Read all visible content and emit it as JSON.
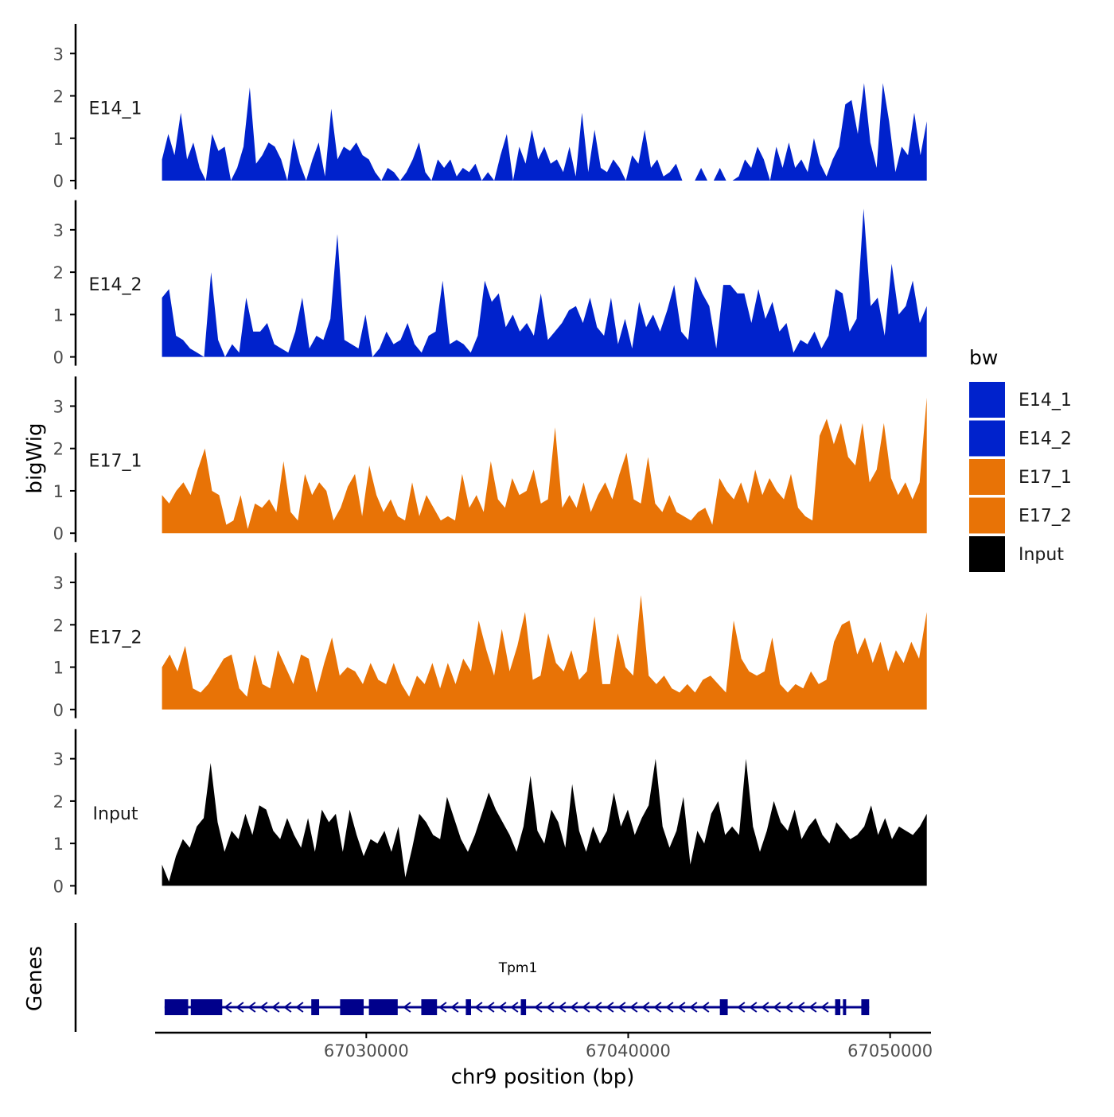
{
  "chart_data": {
    "type": "area",
    "ylabel": "bigWig",
    "xlabel": "chr9 position (bp)",
    "genes_label": "Genes",
    "xlim": [
      67022000,
      67051500
    ],
    "x_ticks": [
      67030000,
      67040000,
      67050000
    ],
    "x_tick_labels": [
      "67030000",
      "67040000",
      "67050000"
    ],
    "ylim": [
      0,
      3.7
    ],
    "y_ticks": [
      0,
      1,
      2,
      3
    ],
    "y_tick_labels": [
      "0",
      "1",
      "2",
      "3"
    ],
    "legend": {
      "title": "bw",
      "position": "right",
      "entries": [
        {
          "label": "E14_1",
          "color": "#0022cc"
        },
        {
          "label": "E14_2",
          "color": "#0022cc"
        },
        {
          "label": "E17_1",
          "color": "#e87306"
        },
        {
          "label": "E17_2",
          "color": "#e87306"
        },
        {
          "label": "Input",
          "color": "#000000"
        }
      ]
    },
    "tracks": [
      {
        "name": "E14_1",
        "color": "#0022cc",
        "x_start": 67022200,
        "x_end": 67051400,
        "values": [
          0.5,
          1.1,
          0.6,
          1.6,
          0.5,
          0.9,
          0.3,
          0,
          1.1,
          0.7,
          0.8,
          0,
          0.3,
          0.8,
          2.2,
          0.4,
          0.6,
          0.9,
          0.8,
          0.5,
          0,
          1.0,
          0.4,
          0,
          0.5,
          0.9,
          0.1,
          1.7,
          0.5,
          0.8,
          0.7,
          0.9,
          0.6,
          0.5,
          0.2,
          0,
          0.3,
          0.2,
          0,
          0.2,
          0.5,
          0.9,
          0.2,
          0,
          0.5,
          0.3,
          0.5,
          0.1,
          0.3,
          0.2,
          0.4,
          0,
          0.2,
          0,
          0.6,
          1.1,
          0,
          0.8,
          0.4,
          1.2,
          0.5,
          0.8,
          0.4,
          0.5,
          0.2,
          0.8,
          0.1,
          1.6,
          0.2,
          1.2,
          0.3,
          0.2,
          0.5,
          0.3,
          0,
          0.6,
          0.4,
          1.2,
          0.3,
          0.5,
          0.1,
          0.2,
          0.4,
          0,
          0,
          0,
          0.3,
          0,
          0,
          0.3,
          0,
          0,
          0.1,
          0.5,
          0.3,
          0.8,
          0.5,
          0,
          0.8,
          0.3,
          0.9,
          0.3,
          0.5,
          0.2,
          1.0,
          0.4,
          0.1,
          0.5,
          0.8,
          1.8,
          1.9,
          1.1,
          2.3,
          0.9,
          0.3,
          2.3,
          1.4,
          0.2,
          0.8,
          0.6,
          1.6,
          0.6,
          1.4
        ]
      },
      {
        "name": "E14_2",
        "color": "#0022cc",
        "x_start": 67022200,
        "x_end": 67051400,
        "values": [
          1.4,
          1.6,
          0.5,
          0.4,
          0.2,
          0.1,
          0,
          2.0,
          0.4,
          0,
          0.3,
          0.1,
          1.4,
          0.6,
          0.6,
          0.8,
          0.3,
          0.2,
          0.1,
          0.6,
          1.4,
          0.2,
          0.5,
          0.4,
          0.9,
          2.9,
          0.4,
          0.3,
          0.2,
          1.0,
          0,
          0.2,
          0.6,
          0.3,
          0.4,
          0.8,
          0.3,
          0.1,
          0.5,
          0.6,
          1.8,
          0.3,
          0.4,
          0.3,
          0.1,
          0.5,
          1.8,
          1.3,
          1.5,
          0.7,
          1.0,
          0.6,
          0.8,
          0.5,
          1.5,
          0.4,
          0.6,
          0.8,
          1.1,
          1.2,
          0.8,
          1.4,
          0.7,
          0.5,
          1.4,
          0.3,
          0.9,
          0.2,
          1.3,
          0.7,
          1.0,
          0.6,
          1.1,
          1.7,
          0.6,
          0.4,
          1.9,
          1.5,
          1.2,
          0.2,
          1.7,
          1.7,
          1.5,
          1.5,
          0.8,
          1.6,
          0.9,
          1.3,
          0.6,
          0.8,
          0.1,
          0.4,
          0.3,
          0.6,
          0.2,
          0.5,
          1.6,
          1.5,
          0.6,
          0.9,
          3.5,
          1.2,
          1.4,
          0.5,
          2.2,
          1.0,
          1.2,
          1.8,
          0.8,
          1.2
        ]
      },
      {
        "name": "E17_1",
        "color": "#e87306",
        "x_start": 67022200,
        "x_end": 67051400,
        "values": [
          0.9,
          0.7,
          1.0,
          1.2,
          0.9,
          1.5,
          2.0,
          1.0,
          0.9,
          0.2,
          0.3,
          0.9,
          0.1,
          0.7,
          0.6,
          0.8,
          0.5,
          1.7,
          0.5,
          0.3,
          1.4,
          0.9,
          1.2,
          1.0,
          0.3,
          0.6,
          1.1,
          1.4,
          0.4,
          1.6,
          0.9,
          0.5,
          0.8,
          0.4,
          0.3,
          1.2,
          0.4,
          0.9,
          0.6,
          0.3,
          0.4,
          0.3,
          1.4,
          0.6,
          0.9,
          0.5,
          1.7,
          0.8,
          0.6,
          1.3,
          0.9,
          1.0,
          1.5,
          0.7,
          0.8,
          2.5,
          0.6,
          0.9,
          0.6,
          1.2,
          0.5,
          0.9,
          1.2,
          0.8,
          1.4,
          1.9,
          0.8,
          0.7,
          1.8,
          0.7,
          0.5,
          0.9,
          0.5,
          0.4,
          0.3,
          0.5,
          0.6,
          0.2,
          1.3,
          1.0,
          0.8,
          1.2,
          0.7,
          1.5,
          0.9,
          1.3,
          1.0,
          0.8,
          1.4,
          0.6,
          0.4,
          0.3,
          2.3,
          2.7,
          2.1,
          2.6,
          1.8,
          1.6,
          2.6,
          1.2,
          1.5,
          2.6,
          1.3,
          0.9,
          1.2,
          0.8,
          1.2,
          3.2
        ]
      },
      {
        "name": "E17_2",
        "color": "#e87306",
        "x_start": 67022200,
        "x_end": 67051400,
        "values": [
          1.0,
          1.3,
          0.9,
          1.5,
          0.5,
          0.4,
          0.6,
          0.9,
          1.2,
          1.3,
          0.5,
          0.3,
          1.3,
          0.6,
          0.5,
          1.4,
          1.0,
          0.6,
          1.3,
          1.2,
          0.4,
          1.1,
          1.7,
          0.8,
          1.0,
          0.9,
          0.6,
          1.1,
          0.7,
          0.6,
          1.1,
          0.6,
          0.3,
          0.8,
          0.6,
          1.1,
          0.5,
          1.1,
          0.6,
          1.2,
          0.9,
          2.1,
          1.4,
          0.8,
          1.9,
          0.9,
          1.5,
          2.3,
          0.7,
          0.8,
          1.8,
          1.1,
          0.9,
          1.4,
          0.7,
          0.9,
          2.2,
          0.6,
          0.6,
          1.8,
          1.0,
          0.8,
          2.7,
          0.8,
          0.6,
          0.8,
          0.5,
          0.4,
          0.6,
          0.4,
          0.7,
          0.8,
          0.6,
          0.4,
          2.1,
          1.2,
          0.9,
          0.8,
          0.9,
          1.7,
          0.6,
          0.4,
          0.6,
          0.5,
          0.9,
          0.6,
          0.7,
          1.6,
          2.0,
          2.1,
          1.3,
          1.7,
          1.1,
          1.6,
          0.9,
          1.4,
          1.1,
          1.6,
          1.2,
          2.3
        ]
      },
      {
        "name": "Input",
        "color": "#000000",
        "x_start": 67022200,
        "x_end": 67051400,
        "values": [
          0.5,
          0.1,
          0.7,
          1.1,
          0.9,
          1.4,
          1.6,
          2.9,
          1.5,
          0.8,
          1.3,
          1.1,
          1.7,
          1.2,
          1.9,
          1.8,
          1.3,
          1.1,
          1.6,
          1.2,
          0.9,
          1.6,
          0.8,
          1.8,
          1.5,
          1.7,
          0.8,
          1.8,
          1.2,
          0.7,
          1.1,
          1.0,
          1.3,
          0.8,
          1.4,
          0.2,
          0.9,
          1.7,
          1.5,
          1.2,
          1.1,
          2.1,
          1.6,
          1.1,
          0.8,
          1.2,
          1.7,
          2.2,
          1.8,
          1.5,
          1.2,
          0.8,
          1.4,
          2.6,
          1.3,
          1.0,
          1.8,
          1.5,
          0.9,
          2.4,
          1.3,
          0.8,
          1.4,
          1.0,
          1.3,
          2.2,
          1.4,
          1.8,
          1.2,
          1.6,
          1.9,
          3.0,
          1.4,
          0.9,
          1.3,
          2.1,
          0.5,
          1.3,
          1.0,
          1.7,
          2.0,
          1.2,
          1.4,
          1.2,
          3.0,
          1.4,
          0.8,
          1.3,
          2.0,
          1.5,
          1.3,
          1.8,
          1.1,
          1.4,
          1.6,
          1.2,
          1.0,
          1.5,
          1.3,
          1.1,
          1.2,
          1.4,
          1.9,
          1.2,
          1.6,
          1.1,
          1.4,
          1.3,
          1.2,
          1.4,
          1.7
        ]
      }
    ],
    "gene": {
      "name": "Tpm1",
      "strand": "-",
      "start": 67022300,
      "end": 67049200,
      "exons": [
        [
          67022300,
          67023200
        ],
        [
          67023300,
          67024500
        ],
        [
          67027900,
          67028200
        ],
        [
          67029000,
          67029900
        ],
        [
          67030100,
          67031200
        ],
        [
          67032100,
          67032700
        ],
        [
          67033800,
          67034000
        ],
        [
          67035900,
          67036100
        ],
        [
          67043500,
          67043800
        ],
        [
          67047900,
          67048100
        ],
        [
          67048200,
          67048300
        ],
        [
          67048900,
          67049200
        ]
      ],
      "color": "#00008b"
    }
  }
}
